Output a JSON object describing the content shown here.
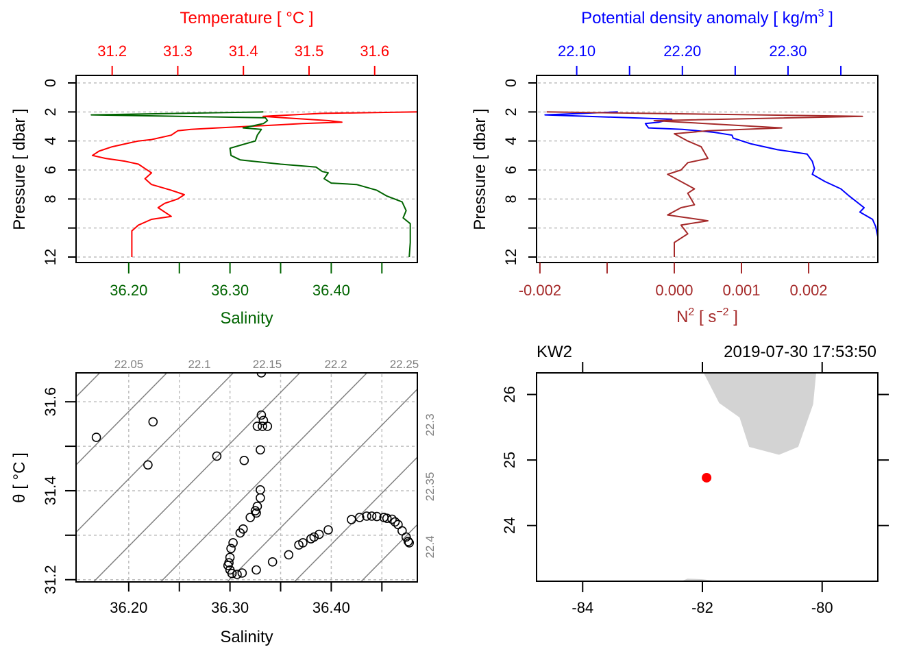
{
  "colors": {
    "temperature": "#ff0000",
    "salinity": "#006400",
    "density": "#0000ff",
    "n2": "#a52a2a",
    "grid": "#bebebe",
    "isopycnal": "#808080",
    "land": "#d3d3d3",
    "station": "#ff0000"
  },
  "chart_data": [
    {
      "id": "profile_ts",
      "type": "line",
      "title": "",
      "top_axis_label": "Temperature [ °C ]",
      "top_ticks": [
        "31.2",
        "31.3",
        "31.4",
        "31.5",
        "31.6"
      ],
      "top_tick_values": [
        31.2,
        31.3,
        31.4,
        31.5,
        31.6
      ],
      "top_range": [
        31.145,
        31.665
      ],
      "bottom_axis_label": "Salinity",
      "bottom_ticks": [
        "36.20",
        "36.30",
        "36.40"
      ],
      "bottom_tick_values": [
        36.2,
        36.25,
        36.3,
        36.35,
        36.4,
        36.45
      ],
      "bottom_range": [
        36.148,
        36.485
      ],
      "ylabel": "Pressure [ dbar ]",
      "y_ticks": [
        "0",
        "2",
        "4",
        "6",
        "8",
        "",
        "12"
      ],
      "y_tick_values": [
        0,
        2,
        4,
        6,
        8,
        10,
        12
      ],
      "ylim": [
        12,
        0
      ],
      "grid": true,
      "series": [
        {
          "name": "Temperature",
          "axis": "top",
          "points": [
            [
              31.665,
              2.0
            ],
            [
              31.52,
              2.1
            ],
            [
              31.43,
              2.3
            ],
            [
              31.46,
              2.4
            ],
            [
              31.53,
              2.6
            ],
            [
              31.55,
              2.7
            ],
            [
              31.49,
              2.8
            ],
            [
              31.45,
              2.9
            ],
            [
              31.36,
              3.1
            ],
            [
              31.32,
              3.2
            ],
            [
              31.3,
              3.3
            ],
            [
              31.29,
              3.6
            ],
            [
              31.26,
              3.9
            ],
            [
              31.24,
              4.0
            ],
            [
              31.22,
              4.2
            ],
            [
              31.2,
              4.4
            ],
            [
              31.18,
              4.7
            ],
            [
              31.17,
              5.0
            ],
            [
              31.19,
              5.2
            ],
            [
              31.22,
              5.4
            ],
            [
              31.24,
              5.6
            ],
            [
              31.25,
              5.9
            ],
            [
              31.26,
              6.2
            ],
            [
              31.25,
              6.6
            ],
            [
              31.26,
              7.0
            ],
            [
              31.29,
              7.4
            ],
            [
              31.31,
              7.7
            ],
            [
              31.3,
              8.0
            ],
            [
              31.28,
              8.3
            ],
            [
              31.27,
              8.6
            ],
            [
              31.29,
              9.2
            ],
            [
              31.26,
              9.4
            ],
            [
              31.24,
              9.8
            ],
            [
              31.23,
              10.2
            ],
            [
              31.23,
              11.0
            ],
            [
              31.23,
              12.0
            ]
          ]
        },
        {
          "name": "Salinity",
          "axis": "bottom",
          "points": [
            [
              36.333,
              2.0
            ],
            [
              36.163,
              2.2
            ],
            [
              36.335,
              2.4
            ],
            [
              36.337,
              2.6
            ],
            [
              36.333,
              2.8
            ],
            [
              36.313,
              3.1
            ],
            [
              36.331,
              3.2
            ],
            [
              36.327,
              3.6
            ],
            [
              36.325,
              4.0
            ],
            [
              36.31,
              4.3
            ],
            [
              36.3,
              4.5
            ],
            [
              36.301,
              5.0
            ],
            [
              36.31,
              5.3
            ],
            [
              36.35,
              5.6
            ],
            [
              36.385,
              5.8
            ],
            [
              36.391,
              6.1
            ],
            [
              36.397,
              6.2
            ],
            [
              36.393,
              6.6
            ],
            [
              36.4,
              6.9
            ],
            [
              36.425,
              7.0
            ],
            [
              36.445,
              7.4
            ],
            [
              36.455,
              7.8
            ],
            [
              36.47,
              8.2
            ],
            [
              36.474,
              8.8
            ],
            [
              36.471,
              9.3
            ],
            [
              36.478,
              9.7
            ],
            [
              36.478,
              10.3
            ],
            [
              36.478,
              11.0
            ],
            [
              36.477,
              12.0
            ]
          ]
        }
      ]
    },
    {
      "id": "profile_density",
      "type": "line",
      "top_axis_label": "Potential density anomaly [ kg/m3 ]",
      "top_ticks": [
        "22.10",
        "22.20",
        "22.30"
      ],
      "top_tick_values": [
        22.1,
        22.15,
        22.2,
        22.25,
        22.3,
        22.35
      ],
      "top_range": [
        22.062,
        22.385
      ],
      "bottom_axis_label": "N2 [ s-2 ]",
      "bottom_ticks": [
        "-0.002",
        "0.000",
        "0.001",
        "0.002"
      ],
      "bottom_tick_values": [
        -0.002,
        -0.001,
        0.0,
        0.001,
        0.002
      ],
      "bottom_range": [
        -0.00205,
        0.00303
      ],
      "ylabel": "Pressure [ dbar ]",
      "y_ticks": [
        "0",
        "2",
        "4",
        "6",
        "8",
        "",
        "12"
      ],
      "y_tick_values": [
        0,
        2,
        4,
        6,
        8,
        10,
        12
      ],
      "ylim": [
        12,
        0
      ],
      "grid": true,
      "series": [
        {
          "name": "Potential density anomaly",
          "axis": "top",
          "points": [
            [
              22.139,
              2.0
            ],
            [
              22.07,
              2.2
            ],
            [
              22.19,
              2.5
            ],
            [
              22.178,
              2.7
            ],
            [
              22.165,
              2.8
            ],
            [
              22.168,
              3.1
            ],
            [
              22.2,
              3.2
            ],
            [
              22.23,
              3.4
            ],
            [
              22.247,
              3.6
            ],
            [
              22.248,
              3.8
            ],
            [
              22.265,
              4.2
            ],
            [
              22.29,
              4.6
            ],
            [
              22.318,
              4.9
            ],
            [
              22.323,
              5.4
            ],
            [
              22.325,
              5.9
            ],
            [
              22.323,
              6.3
            ],
            [
              22.335,
              6.8
            ],
            [
              22.35,
              7.3
            ],
            [
              22.358,
              7.8
            ],
            [
              22.372,
              8.6
            ],
            [
              22.368,
              8.9
            ],
            [
              22.38,
              9.4
            ],
            [
              22.383,
              9.9
            ],
            [
              22.385,
              10.6
            ],
            [
              22.385,
              12.0
            ]
          ]
        },
        {
          "name": "N2",
          "axis": "bottom",
          "points": [
            [
              -0.0019,
              2.0
            ],
            [
              0.0028,
              2.3
            ],
            [
              -0.0003,
              2.6
            ],
            [
              0.0016,
              3.1
            ],
            [
              0.0005,
              3.3
            ],
            [
              0.0,
              3.5
            ],
            [
              0.0002,
              4.0
            ],
            [
              0.0004,
              4.4
            ],
            [
              0.0005,
              5.2
            ],
            [
              0.0002,
              5.5
            ],
            [
              0.0001,
              6.0
            ],
            [
              -0.0001,
              6.3
            ],
            [
              0.0003,
              7.3
            ],
            [
              0.0002,
              7.6
            ],
            [
              0.0003,
              8.4
            ],
            [
              0.0001,
              8.6
            ],
            [
              -0.0001,
              9.1
            ],
            [
              0.0005,
              9.5
            ],
            [
              0.0001,
              9.8
            ],
            [
              0.0002,
              10.4
            ],
            [
              0.0,
              11.0
            ],
            [
              0.0,
              12.0
            ]
          ]
        }
      ]
    },
    {
      "id": "ts_diagram",
      "type": "scatter",
      "xlabel": "Salinity",
      "ylabel": "θ [ °C ]",
      "x_ticks": [
        "36.20",
        "36.30",
        "36.40"
      ],
      "x_tick_values": [
        36.2,
        36.25,
        36.3,
        36.35,
        36.4,
        36.45
      ],
      "xlim": [
        36.148,
        36.485
      ],
      "y_ticks": [
        "31.2",
        "31.4",
        "31.6"
      ],
      "y_tick_values": [
        31.2,
        31.3,
        31.4,
        31.5,
        31.6
      ],
      "ylim": [
        31.195,
        31.665
      ],
      "grid": true,
      "isopycnal_labels_top": [
        "22.05",
        "22.1",
        "22.15",
        "22.2",
        "22.25"
      ],
      "isopycnal_labels_right": [
        "22.3",
        "22.35",
        "22.4"
      ],
      "points": [
        [
          36.168,
          31.52
        ],
        [
          36.224,
          31.555
        ],
        [
          36.219,
          31.458
        ],
        [
          36.287,
          31.478
        ],
        [
          36.314,
          31.468
        ],
        [
          36.331,
          31.665
        ],
        [
          36.331,
          31.57
        ],
        [
          36.333,
          31.558
        ],
        [
          36.337,
          31.545
        ],
        [
          36.327,
          31.545
        ],
        [
          36.332,
          31.545
        ],
        [
          36.33,
          31.492
        ],
        [
          36.33,
          31.402
        ],
        [
          36.33,
          31.384
        ],
        [
          36.327,
          31.365
        ],
        [
          36.325,
          31.355
        ],
        [
          36.326,
          31.35
        ],
        [
          36.32,
          31.34
        ],
        [
          36.313,
          31.314
        ],
        [
          36.31,
          31.305
        ],
        [
          36.303,
          31.283
        ],
        [
          36.301,
          31.27
        ],
        [
          36.3,
          31.25
        ],
        [
          36.299,
          31.238
        ],
        [
          36.298,
          31.232
        ],
        [
          36.3,
          31.222
        ],
        [
          36.302,
          31.214
        ],
        [
          36.307,
          31.212
        ],
        [
          36.312,
          31.215
        ],
        [
          36.326,
          31.222
        ],
        [
          36.342,
          31.24
        ],
        [
          36.358,
          31.256
        ],
        [
          36.368,
          31.278
        ],
        [
          36.372,
          31.283
        ],
        [
          36.38,
          31.292
        ],
        [
          36.383,
          31.296
        ],
        [
          36.388,
          31.302
        ],
        [
          36.397,
          31.312
        ],
        [
          36.42,
          31.335
        ],
        [
          36.428,
          31.34
        ],
        [
          36.435,
          31.343
        ],
        [
          36.44,
          31.343
        ],
        [
          36.445,
          31.342
        ],
        [
          36.452,
          31.34
        ],
        [
          36.455,
          31.338
        ],
        [
          36.46,
          31.336
        ],
        [
          36.463,
          31.33
        ],
        [
          36.466,
          31.324
        ],
        [
          36.47,
          31.31
        ],
        [
          36.474,
          31.296
        ],
        [
          36.476,
          31.286
        ],
        [
          36.477,
          31.283
        ]
      ]
    },
    {
      "id": "station_map",
      "type": "scatter",
      "station_label": "KW2",
      "timestamp": "2019-07-30 17:53:50",
      "x_ticks": [
        "-84",
        "-82",
        "-80"
      ],
      "x_tick_values": [
        -84,
        -82,
        -80
      ],
      "xlim": [
        -84.77,
        -79.07
      ],
      "y_ticks": [
        "24",
        "25",
        "26"
      ],
      "y_tick_values": [
        24,
        25,
        26
      ],
      "ylim": [
        23.15,
        26.33
      ],
      "station": {
        "lon": -81.93,
        "lat": 24.73
      },
      "land": [
        [
          [
            -81.98,
            26.33
          ],
          [
            -81.72,
            25.87
          ],
          [
            -81.38,
            25.65
          ],
          [
            -81.22,
            25.2
          ],
          [
            -80.72,
            25.08
          ],
          [
            -80.4,
            25.2
          ],
          [
            -80.15,
            25.85
          ],
          [
            -80.1,
            26.33
          ]
        ],
        [
          [
            -82.35,
            23.15
          ],
          [
            -82.25,
            23.19
          ],
          [
            -82.0,
            23.18
          ],
          [
            -81.75,
            23.15
          ]
        ]
      ]
    }
  ]
}
